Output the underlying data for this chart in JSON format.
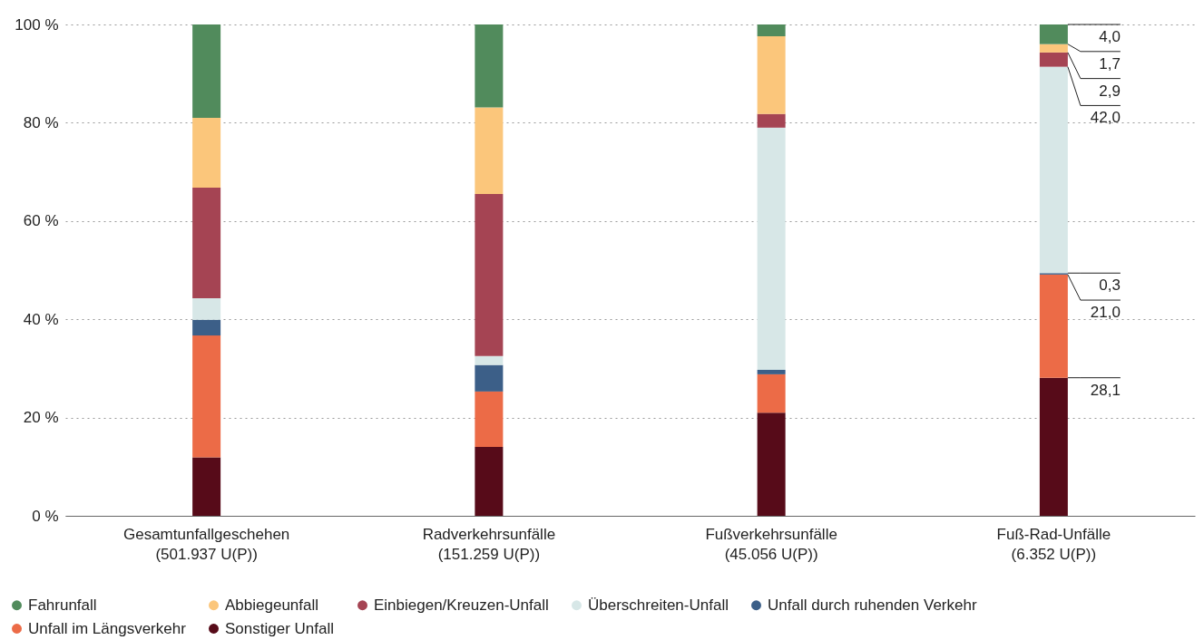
{
  "chart_data": {
    "type": "bar",
    "stacked": true,
    "categories": [
      "Gesamtunfallgeschehen (501.937 U(P))",
      "Radverkehrsunfälle (151.259 U(P))",
      "Fußverkehrsunfälle (45.056 U(P))",
      "Fuß-Rad-Unfälle (6.352 U(P))"
    ],
    "series": [
      {
        "name": "Sonstiger Unfall",
        "color": "#570b19",
        "values": [
          11.9,
          14.0,
          21.0,
          28.1
        ],
        "value_labels": [
          null,
          null,
          null,
          "28,1"
        ]
      },
      {
        "name": "Unfall im Längsverkehr",
        "color": "#ec6b47",
        "values": [
          24.8,
          11.3,
          7.8,
          21.0
        ],
        "value_labels": [
          null,
          null,
          null,
          "21,0"
        ]
      },
      {
        "name": "Unfall durch ruhenden Verkehr",
        "color": "#3c5f88",
        "values": [
          3.2,
          5.4,
          0.9,
          0.3
        ],
        "value_labels": [
          null,
          null,
          null,
          "0,3"
        ]
      },
      {
        "name": "Überschreiten-Unfall",
        "color": "#d7e7e7",
        "values": [
          4.4,
          1.8,
          49.3,
          42.0
        ],
        "value_labels": [
          null,
          null,
          null,
          "42,0"
        ]
      },
      {
        "name": "Einbiegen/Kreuzen-Unfall",
        "color": "#a54453",
        "values": [
          22.5,
          33.0,
          2.8,
          2.9
        ],
        "value_labels": [
          null,
          null,
          null,
          "2,9"
        ]
      },
      {
        "name": "Abbiegeunfall",
        "color": "#fbc67b",
        "values": [
          14.2,
          17.6,
          15.8,
          1.7
        ],
        "value_labels": [
          null,
          null,
          null,
          "1,7"
        ]
      },
      {
        "name": "Fahrunfall",
        "color": "#518b5c",
        "values": [
          19.0,
          16.9,
          2.4,
          4.0
        ],
        "value_labels": [
          null,
          null,
          null,
          "4,0"
        ]
      }
    ],
    "ylim": [
      0,
      100
    ],
    "yticks": [
      {
        "value": 0,
        "label": "0 %"
      },
      {
        "value": 20,
        "label": "20 %"
      },
      {
        "value": 40,
        "label": "40 %"
      },
      {
        "value": 60,
        "label": "60 %"
      },
      {
        "value": 80,
        "label": "80 %"
      },
      {
        "value": 100,
        "label": "100 %"
      }
    ],
    "grid": "y",
    "legend": "bottom"
  }
}
